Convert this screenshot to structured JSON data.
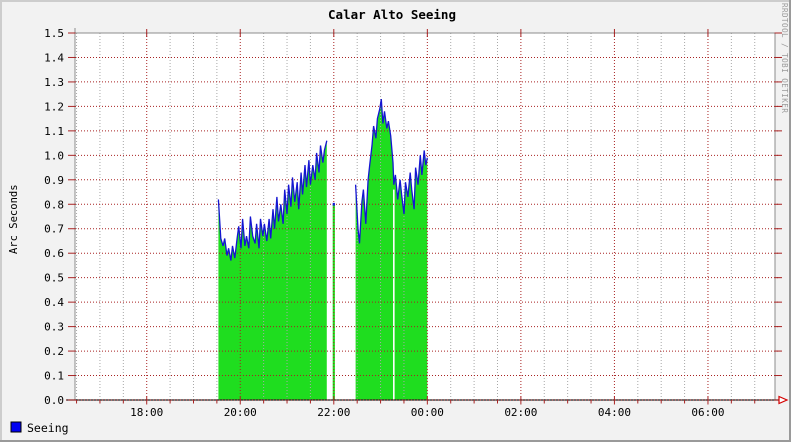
{
  "title": "Calar Alto Seeing",
  "watermark": "RRDTOOL / TOBI OETIKER",
  "legend": [
    {
      "label": "Seeing",
      "color": "#0000f0"
    }
  ],
  "colors": {
    "background": "#f2f2f2",
    "plot_background": "#ffffff",
    "major_grid": "#a82222",
    "minor_grid": "#a8a8a8",
    "frame": "#8c8c8c",
    "area_fill": "#1fdd1f",
    "line": "#1515d2",
    "axis_arrow": "#d40000",
    "border_light": "#cdcdcd",
    "border_dark": "#9a9a9a"
  },
  "chart_data": {
    "type": "area",
    "title": "Calar Alto Seeing",
    "xlabel": "",
    "ylabel": "Arc Seconds",
    "ylim": [
      0.0,
      1.5
    ],
    "y_tick_step": 0.1,
    "y_tick_labels": [
      "0.0",
      "0.1",
      "0.2",
      "0.3",
      "0.4",
      "0.5",
      "0.6",
      "0.7",
      "0.8",
      "0.9",
      "1.0",
      "1.1",
      "1.2",
      "1.3",
      "1.4",
      "1.5"
    ],
    "x_range": [
      "16:28",
      "07:26"
    ],
    "x_tick_labels": [
      "18:00",
      "20:00",
      "22:00",
      "00:00",
      "02:00",
      "04:00",
      "06:00"
    ],
    "x_minor_every_minutes": 30,
    "grid": true,
    "legend_position": "bottom-left",
    "series": [
      {
        "name": "Seeing",
        "line_color": "#1515d2",
        "fill_color": "#1fdd1f",
        "segments": [
          {
            "points": [
              [
                "19:32",
                0.82
              ],
              [
                "19:35",
                0.66
              ],
              [
                "19:38",
                0.63
              ],
              [
                "19:40",
                0.66
              ],
              [
                "19:43",
                0.59
              ],
              [
                "19:45",
                0.62
              ],
              [
                "19:48",
                0.57
              ],
              [
                "19:50",
                0.63
              ],
              [
                "19:53",
                0.58
              ],
              [
                "19:56",
                0.66
              ],
              [
                "19:58",
                0.71
              ],
              [
                "20:01",
                0.62
              ],
              [
                "20:03",
                0.74
              ],
              [
                "20:06",
                0.63
              ],
              [
                "20:08",
                0.67
              ],
              [
                "20:11",
                0.62
              ],
              [
                "20:13",
                0.75
              ],
              [
                "20:16",
                0.67
              ],
              [
                "20:19",
                0.64
              ],
              [
                "20:21",
                0.72
              ],
              [
                "20:24",
                0.62
              ],
              [
                "20:26",
                0.74
              ],
              [
                "20:29",
                0.67
              ],
              [
                "20:31",
                0.72
              ],
              [
                "20:34",
                0.65
              ],
              [
                "20:37",
                0.74
              ],
              [
                "20:39",
                0.66
              ],
              [
                "20:42",
                0.78
              ],
              [
                "20:44",
                0.7
              ],
              [
                "20:47",
                0.83
              ],
              [
                "20:49",
                0.73
              ],
              [
                "20:52",
                0.8
              ],
              [
                "20:55",
                0.72
              ],
              [
                "20:57",
                0.86
              ],
              [
                "21:00",
                0.76
              ],
              [
                "21:02",
                0.88
              ],
              [
                "21:05",
                0.79
              ],
              [
                "21:07",
                0.91
              ],
              [
                "21:10",
                0.81
              ],
              [
                "21:13",
                0.89
              ],
              [
                "21:15",
                0.78
              ],
              [
                "21:18",
                0.93
              ],
              [
                "21:20",
                0.84
              ],
              [
                "21:23",
                0.96
              ],
              [
                "21:25",
                0.87
              ],
              [
                "21:28",
                0.98
              ],
              [
                "21:30",
                0.88
              ],
              [
                "21:33",
                0.96
              ],
              [
                "21:36",
                0.9
              ],
              [
                "21:38",
                1.01
              ],
              [
                "21:41",
                0.93
              ],
              [
                "21:43",
                1.04
              ],
              [
                "21:46",
                0.97
              ],
              [
                "21:48",
                1.02
              ],
              [
                "21:51",
                1.06
              ]
            ]
          },
          {
            "points": [
              [
                "22:00",
                0.8
              ]
            ]
          },
          {
            "points": [
              [
                "22:28",
                0.88
              ],
              [
                "22:31",
                0.7
              ],
              [
                "22:33",
                0.64
              ],
              [
                "22:36",
                0.81
              ],
              [
                "22:38",
                0.86
              ],
              [
                "22:41",
                0.72
              ],
              [
                "22:44",
                0.9
              ],
              [
                "22:46",
                0.96
              ],
              [
                "22:49",
                1.04
              ],
              [
                "22:51",
                1.12
              ],
              [
                "22:54",
                1.07
              ],
              [
                "22:56",
                1.15
              ],
              [
                "22:59",
                1.19
              ],
              [
                "23:01",
                1.23
              ],
              [
                "23:03",
                1.13
              ],
              [
                "23:05",
                1.18
              ],
              [
                "23:08",
                1.11
              ],
              [
                "23:10",
                1.14
              ],
              [
                "23:13",
                1.08
              ],
              [
                "23:16",
                0.97
              ],
              [
                "23:17",
                0.88
              ],
              [
                "23:19",
                0.92
              ],
              [
                "23:22",
                0.82
              ],
              [
                "23:25",
                0.9
              ],
              [
                "23:27",
                0.84
              ],
              [
                "23:30",
                0.76
              ],
              [
                "23:32",
                0.89
              ],
              [
                "23:35",
                0.83
              ],
              [
                "23:38",
                0.93
              ],
              [
                "23:40",
                0.86
              ],
              [
                "23:43",
                0.78
              ],
              [
                "23:45",
                0.95
              ],
              [
                "23:48",
                0.88
              ],
              [
                "23:51",
                1.0
              ],
              [
                "23:53",
                0.92
              ],
              [
                "23:56",
                1.02
              ],
              [
                "23:58",
                0.96
              ],
              [
                "00:00",
                0.99
              ]
            ]
          }
        ],
        "fill_gaps": [
          {
            "time": "23:17",
            "below": 0.86
          }
        ]
      }
    ]
  }
}
